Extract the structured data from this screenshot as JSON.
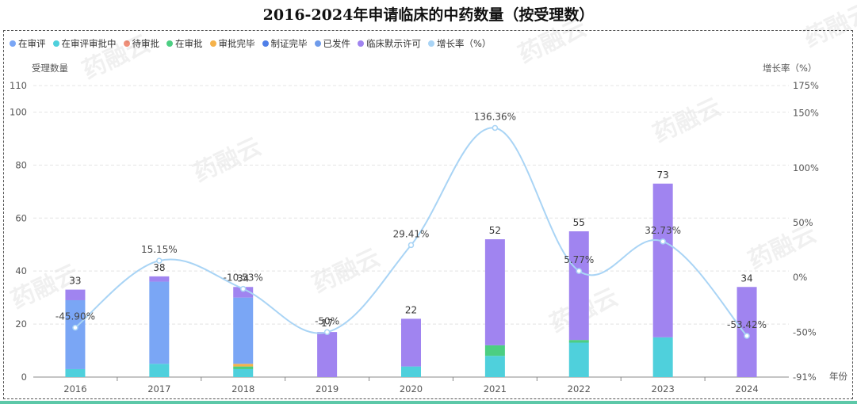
{
  "page": {
    "title": "2016-2024年申请临床的中药数量（按受理数）"
  },
  "legend": [
    {
      "name": "在审评",
      "color": "#7aa6f5"
    },
    {
      "name": "在审评审批中",
      "color": "#4fd0dc"
    },
    {
      "name": "待审批",
      "color": "#f0907a"
    },
    {
      "name": "在审批",
      "color": "#4cce82"
    },
    {
      "name": "审批完毕",
      "color": "#f5b24a"
    },
    {
      "name": "制证完毕",
      "color": "#4f7fe8"
    },
    {
      "name": "已发件",
      "color": "#6f9bea"
    },
    {
      "name": "临床默示许可",
      "color": "#a084f0"
    },
    {
      "name": "增长率（%）",
      "color": "#a9d4f5"
    }
  ],
  "watermark": "药融云",
  "chart_data": {
    "type": "bar",
    "title": "2016-2024年申请临床的中药数量（按受理数）",
    "xlabel": "年份",
    "ylabel": "受理数量",
    "y2label": "增长率（%）",
    "ylim": [
      0,
      110
    ],
    "y_ticks": [
      0,
      20,
      40,
      60,
      80,
      100,
      110
    ],
    "y2lim": [
      -91,
      175
    ],
    "y2_ticks": [
      {
        "value": -91,
        "label": "-91%"
      },
      {
        "value": -50,
        "label": "-50%"
      },
      {
        "value": 0,
        "label": "0%"
      },
      {
        "value": 50,
        "label": "50%"
      },
      {
        "value": 100,
        "label": "100%"
      },
      {
        "value": 150,
        "label": "150%"
      },
      {
        "value": 175,
        "label": "175%"
      }
    ],
    "categories": [
      "2016",
      "2017",
      "2018",
      "2019",
      "2020",
      "2021",
      "2022",
      "2023",
      "2024"
    ],
    "totals": [
      "33",
      "38",
      "34",
      "17",
      "22",
      "52",
      "55",
      "73",
      "34"
    ],
    "series": [
      {
        "name": "在审评审批中",
        "color": "#4fd0dc",
        "values": [
          3,
          5,
          3,
          0,
          4,
          8,
          13,
          15,
          0
        ]
      },
      {
        "name": "在审批",
        "color": "#4cce82",
        "values": [
          0,
          0,
          1,
          0,
          0,
          4,
          1,
          0,
          0
        ]
      },
      {
        "name": "审批完毕",
        "color": "#f5b24a",
        "values": [
          0,
          0,
          1,
          0,
          0,
          0,
          0,
          0,
          0
        ]
      },
      {
        "name": "已发件",
        "color": "#7aa6f5",
        "values": [
          26,
          31,
          25,
          0,
          0,
          0,
          0,
          0,
          0
        ]
      },
      {
        "name": "临床默示许可",
        "color": "#a084f0",
        "values": [
          4,
          2,
          4,
          17,
          18,
          40,
          41,
          58,
          34
        ]
      }
    ],
    "growth": {
      "name": "增长率（%）",
      "color": "#a9d4f5",
      "values": [
        -45.9,
        15.15,
        -10.53,
        -50,
        29.41,
        136.36,
        5.77,
        32.73,
        -53.42
      ],
      "labels": [
        "-45.90%",
        "15.15%",
        "-10.53%",
        "-50%",
        "29.41%",
        "136.36%",
        "5.77%",
        "32.73%",
        "-53.42%"
      ]
    }
  }
}
